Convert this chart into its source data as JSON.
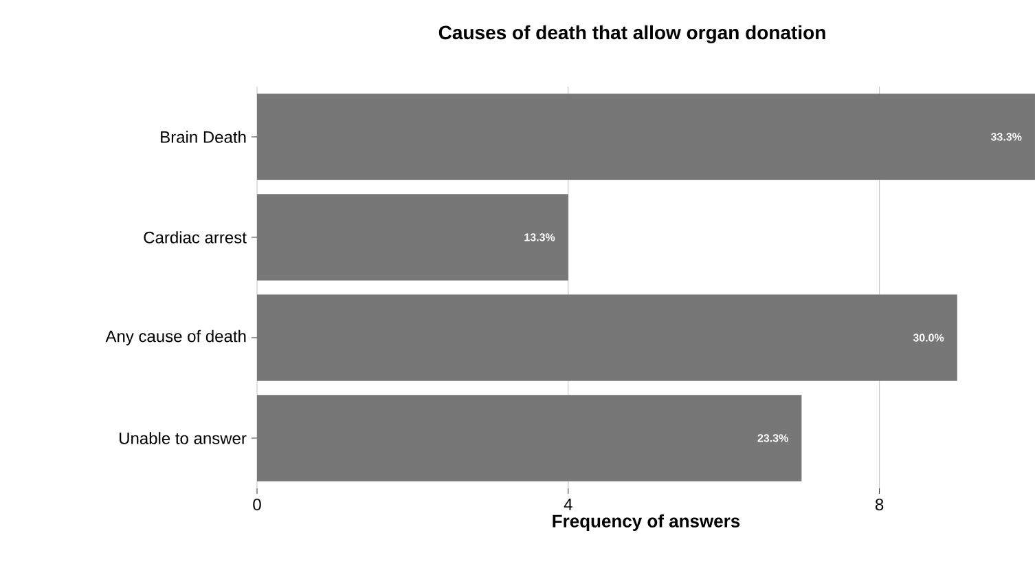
{
  "chart_data": {
    "type": "bar",
    "orientation": "horizontal",
    "title": "Causes of death that allow organ donation",
    "xlabel": "Frequency of answers",
    "categories": [
      "Brain Death",
      "Cardiac arrest",
      "Any cause of death",
      "Unable to answer"
    ],
    "values": [
      10,
      4,
      9,
      7
    ],
    "color": "#777777",
    "annotations": [
      {
        "text": "33.3%",
        "x": 10,
        "y": "Brain Death"
      },
      {
        "text": "13.3%",
        "x": 4,
        "y": "Cardiac arrest"
      },
      {
        "text": "30.0%",
        "x": 9,
        "y": "Any cause of death"
      },
      {
        "text": "23.3%",
        "x": 7,
        "y": "Unable to answer"
      }
    ],
    "xlim": [
      0,
      10
    ],
    "xticks": [
      0,
      4,
      8
    ],
    "grid": "x"
  }
}
